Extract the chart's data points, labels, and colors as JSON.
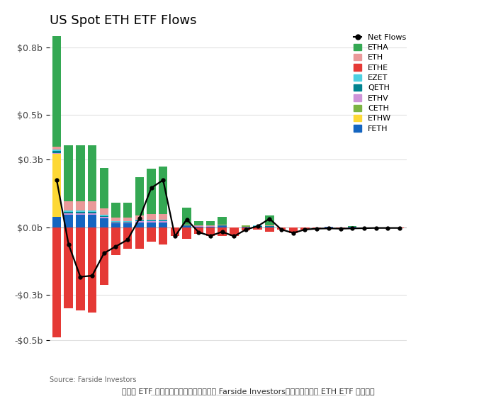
{
  "title": "US Spot ETH ETF Flows",
  "source_text": "Source: Farside Investors",
  "caption": "以太坊 ETF 流量大幅放缓。｜资料来源： Farside Investors提供的美国现货 ETH ETF 流量数据",
  "ylim": [
    -0.55,
    0.85
  ],
  "yticks": [
    -0.5,
    -0.3,
    0.0,
    0.3,
    0.5,
    0.8
  ],
  "ytick_labels": [
    "-$0.5b",
    "-$0.3b",
    "$0.0b",
    "$0.3b",
    "$0.5b",
    "$0.8b"
  ],
  "series_order": [
    "FETH",
    "ETHW",
    "CETH",
    "ETHV",
    "QETH",
    "EZET",
    "ETH",
    "ETHA",
    "ETHE"
  ],
  "series": {
    "ETHA": {
      "color": "#34a853"
    },
    "ETH": {
      "color": "#ea9999"
    },
    "ETHE": {
      "color": "#e53935"
    },
    "EZET": {
      "color": "#4dd0e1"
    },
    "QETH": {
      "color": "#00838f"
    },
    "ETHV": {
      "color": "#ce93d8"
    },
    "CETH": {
      "color": "#7cb342"
    },
    "ETHW": {
      "color": "#fdd835"
    },
    "FETH": {
      "color": "#1565c0"
    }
  },
  "legend_order": [
    "Net Flows",
    "ETHA",
    "ETH",
    "ETHE",
    "EZET",
    "QETH",
    "ETHV",
    "CETH",
    "ETHW",
    "FETH"
  ],
  "bars": [
    {
      "ETHA": 0.56,
      "ETH": 0.015,
      "ETHE": -0.49,
      "EZET": 0.005,
      "QETH": 0.008,
      "ETHV": 0.006,
      "CETH": 0.0,
      "ETHW": 0.28,
      "FETH": 0.045
    },
    {
      "ETHA": 0.25,
      "ETH": 0.04,
      "ETHE": -0.36,
      "EZET": 0.005,
      "QETH": 0.008,
      "ETHV": 0.006,
      "CETH": 0.0,
      "ETHW": 0.0,
      "FETH": 0.055
    },
    {
      "ETHA": 0.25,
      "ETH": 0.04,
      "ETHE": -0.37,
      "EZET": 0.005,
      "QETH": 0.008,
      "ETHV": 0.006,
      "CETH": 0.0,
      "ETHW": 0.0,
      "FETH": 0.055
    },
    {
      "ETHA": 0.25,
      "ETH": 0.04,
      "ETHE": -0.38,
      "EZET": 0.005,
      "QETH": 0.008,
      "ETHV": 0.006,
      "CETH": 0.0,
      "ETHW": 0.0,
      "FETH": 0.055
    },
    {
      "ETHA": 0.18,
      "ETH": 0.03,
      "ETHE": -0.255,
      "EZET": 0.004,
      "QETH": 0.006,
      "ETHV": 0.005,
      "CETH": 0.0,
      "ETHW": 0.0,
      "FETH": 0.04
    },
    {
      "ETHA": 0.065,
      "ETH": 0.015,
      "ETHE": -0.125,
      "EZET": 0.003,
      "QETH": 0.004,
      "ETHV": 0.003,
      "CETH": 0.0,
      "ETHW": 0.0,
      "FETH": 0.018
    },
    {
      "ETHA": 0.065,
      "ETH": 0.015,
      "ETHE": -0.095,
      "EZET": 0.003,
      "QETH": 0.004,
      "ETHV": 0.003,
      "CETH": 0.0,
      "ETHW": 0.0,
      "FETH": 0.018
    },
    {
      "ETHA": 0.17,
      "ETH": 0.02,
      "ETHE": -0.095,
      "EZET": 0.003,
      "QETH": 0.005,
      "ETHV": 0.004,
      "CETH": 0.0,
      "ETHW": 0.0,
      "FETH": 0.022
    },
    {
      "ETHA": 0.2,
      "ETH": 0.025,
      "ETHE": -0.065,
      "EZET": 0.003,
      "QETH": 0.005,
      "ETHV": 0.004,
      "CETH": 0.0,
      "ETHW": 0.0,
      "FETH": 0.022
    },
    {
      "ETHA": 0.21,
      "ETH": 0.025,
      "ETHE": -0.075,
      "EZET": 0.003,
      "QETH": 0.005,
      "ETHV": 0.004,
      "CETH": 0.0,
      "ETHW": 0.0,
      "FETH": 0.022
    },
    {
      "ETHA": 0.0,
      "ETH": 0.0,
      "ETHE": -0.04,
      "EZET": 0.0,
      "QETH": 0.0,
      "ETHV": 0.0,
      "CETH": 0.0,
      "ETHW": 0.0,
      "FETH": 0.0
    },
    {
      "ETHA": 0.075,
      "ETH": 0.005,
      "ETHE": -0.05,
      "EZET": 0.0,
      "QETH": 0.001,
      "ETHV": 0.001,
      "CETH": 0.0,
      "ETHW": 0.0,
      "FETH": 0.005
    },
    {
      "ETHA": 0.018,
      "ETH": 0.003,
      "ETHE": -0.03,
      "EZET": 0.0,
      "QETH": 0.001,
      "ETHV": 0.001,
      "CETH": 0.0,
      "ETHW": 0.0,
      "FETH": 0.003
    },
    {
      "ETHA": 0.018,
      "ETH": 0.003,
      "ETHE": -0.04,
      "EZET": 0.0,
      "QETH": 0.001,
      "ETHV": 0.001,
      "CETH": 0.0,
      "ETHW": 0.0,
      "FETH": 0.003
    },
    {
      "ETHA": 0.035,
      "ETH": 0.005,
      "ETHE": -0.04,
      "EZET": 0.0,
      "QETH": 0.001,
      "ETHV": 0.001,
      "CETH": 0.0,
      "ETHW": 0.0,
      "FETH": 0.005
    },
    {
      "ETHA": 0.0,
      "ETH": 0.0,
      "ETHE": -0.04,
      "EZET": 0.0,
      "QETH": 0.0,
      "ETHV": 0.0,
      "CETH": 0.0,
      "ETHW": 0.0,
      "FETH": 0.0
    },
    {
      "ETHA": 0.0,
      "ETH": 0.0,
      "ETHE": -0.015,
      "EZET": 0.0,
      "QETH": 0.0,
      "ETHV": 0.0,
      "CETH": 0.007,
      "ETHW": 0.0,
      "FETH": 0.002
    },
    {
      "ETHA": 0.0,
      "ETH": 0.0,
      "ETHE": -0.01,
      "EZET": 0.003,
      "QETH": 0.002,
      "ETHV": 0.001,
      "CETH": 0.0,
      "ETHW": 0.0,
      "FETH": 0.002
    },
    {
      "ETHA": 0.045,
      "ETH": 0.005,
      "ETHE": -0.02,
      "EZET": 0.0,
      "QETH": 0.001,
      "ETHV": 0.001,
      "CETH": 0.0,
      "ETHW": 0.0,
      "FETH": 0.002
    },
    {
      "ETHA": 0.0,
      "ETH": 0.0,
      "ETHE": -0.01,
      "EZET": 0.0,
      "QETH": 0.0,
      "ETHV": 0.0,
      "CETH": 0.0,
      "ETHW": 0.0,
      "FETH": 0.0
    },
    {
      "ETHA": 0.0,
      "ETH": 0.0,
      "ETHE": -0.025,
      "EZET": 0.0,
      "QETH": 0.0,
      "ETHV": 0.0,
      "CETH": 0.0,
      "ETHW": 0.0,
      "FETH": 0.0
    },
    {
      "ETHA": 0.0,
      "ETH": 0.0,
      "ETHE": -0.01,
      "EZET": 0.0,
      "QETH": 0.0,
      "ETHV": 0.0,
      "CETH": 0.0,
      "ETHW": 0.0,
      "FETH": 0.0
    },
    {
      "ETHA": 0.0,
      "ETH": 0.0,
      "ETHE": -0.006,
      "EZET": 0.0,
      "QETH": 0.0,
      "ETHV": 0.0,
      "CETH": 0.0,
      "ETHW": 0.0,
      "FETH": 0.0
    },
    {
      "ETHA": 0.0,
      "ETH": 0.002,
      "ETHE": -0.006,
      "EZET": 0.0,
      "QETH": 0.0,
      "ETHV": 0.0,
      "CETH": 0.0,
      "ETHW": 0.0,
      "FETH": 0.001
    },
    {
      "ETHA": 0.0,
      "ETH": 0.0,
      "ETHE": -0.006,
      "EZET": 0.0,
      "QETH": 0.0,
      "ETHV": 0.0,
      "CETH": 0.0,
      "ETHW": 0.0,
      "FETH": 0.0
    },
    {
      "ETHA": 0.003,
      "ETH": 0.001,
      "ETHE": -0.006,
      "EZET": 0.0,
      "QETH": 0.001,
      "ETHV": 0.0,
      "CETH": 0.0,
      "ETHW": 0.0,
      "FETH": 0.001
    },
    {
      "ETHA": 0.0,
      "ETH": 0.0,
      "ETHE": -0.004,
      "EZET": 0.0,
      "QETH": 0.0,
      "ETHV": 0.0,
      "CETH": 0.0,
      "ETHW": 0.0,
      "FETH": 0.0
    },
    {
      "ETHA": 0.0,
      "ETH": 0.0,
      "ETHE": -0.003,
      "EZET": 0.0,
      "QETH": 0.0,
      "ETHV": 0.0,
      "CETH": 0.0,
      "ETHW": 0.0,
      "FETH": 0.0
    },
    {
      "ETHA": 0.0,
      "ETH": 0.0,
      "ETHE": -0.003,
      "EZET": 0.0,
      "QETH": 0.0,
      "ETHV": 0.0,
      "CETH": 0.0,
      "ETHW": 0.0,
      "FETH": 0.0
    },
    {
      "ETHA": 0.0,
      "ETH": 0.0,
      "ETHE": -0.003,
      "EZET": 0.0,
      "QETH": 0.0,
      "ETHV": 0.0,
      "CETH": 0.0,
      "ETHW": 0.0,
      "FETH": 0.0
    }
  ],
  "net_flows": [
    0.21,
    -0.075,
    -0.22,
    -0.215,
    -0.115,
    -0.085,
    -0.055,
    0.04,
    0.175,
    0.21,
    -0.04,
    0.035,
    -0.022,
    -0.038,
    -0.02,
    -0.04,
    -0.01,
    0.005,
    0.038,
    -0.01,
    -0.025,
    -0.01,
    -0.006,
    -0.005,
    -0.006,
    -0.005,
    -0.004,
    -0.003,
    -0.003,
    -0.003
  ],
  "background_color": "#ffffff",
  "grid_color": "#e0e0e0",
  "title_fontsize": 13,
  "axis_fontsize": 9
}
